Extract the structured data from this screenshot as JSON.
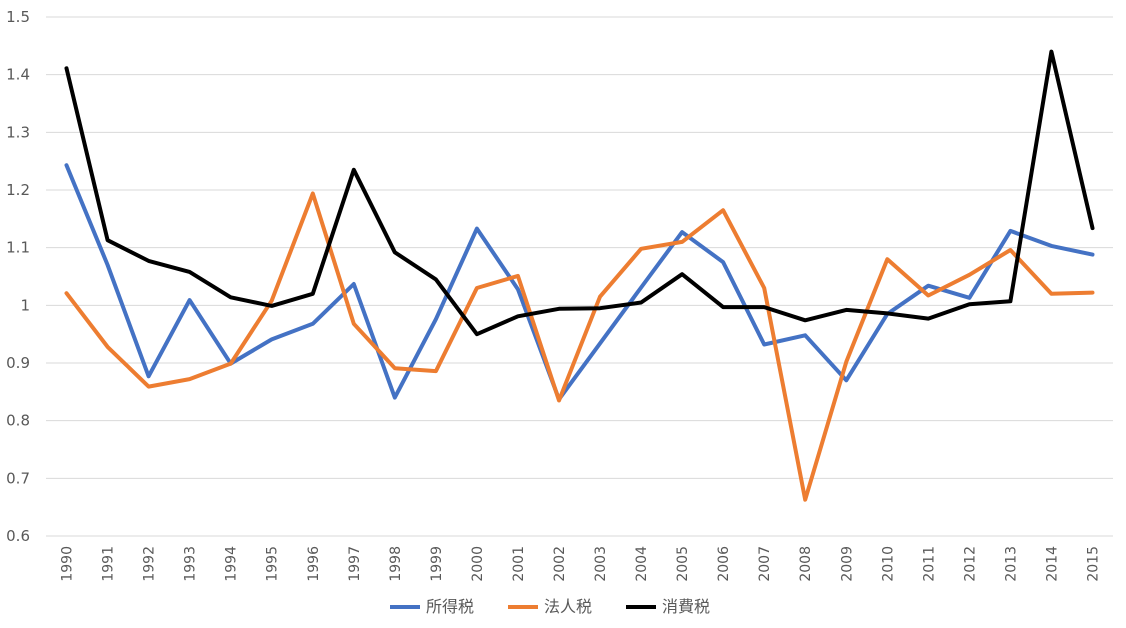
{
  "chart_data": {
    "type": "line",
    "title": "",
    "xlabel": "",
    "ylabel": "",
    "ylim": [
      0.6,
      1.5
    ],
    "yticks": [
      "0.6",
      "0.7",
      "0.8",
      "0.9",
      "1",
      "1.1",
      "1.2",
      "1.3",
      "1.4",
      "1.5"
    ],
    "grid": true,
    "legend_position": "bottom",
    "categories": [
      "1990",
      "1991",
      "1992",
      "1993",
      "1994",
      "1995",
      "1996",
      "1997",
      "1998",
      "1999",
      "2000",
      "2001",
      "2002",
      "2003",
      "2004",
      "2005",
      "2006",
      "2007",
      "2008",
      "2009",
      "2010",
      "2011",
      "2012",
      "2013",
      "2014",
      "2015"
    ],
    "series": [
      {
        "name": "所得税",
        "color": "#4472C4",
        "values": [
          1.243,
          1.07,
          0.877,
          1.009,
          0.899,
          0.941,
          0.968,
          1.037,
          0.84,
          0.976,
          1.133,
          1.028,
          0.837,
          0.934,
          1.031,
          1.127,
          1.075,
          0.932,
          0.948,
          0.87,
          0.985,
          1.034,
          1.013,
          1.129,
          1.103,
          1.088
        ]
      },
      {
        "name": "法人税",
        "color": "#ED7D31",
        "values": [
          1.021,
          0.928,
          0.859,
          0.872,
          0.899,
          1.008,
          1.194,
          0.968,
          0.891,
          0.886,
          1.03,
          1.051,
          0.835,
          1.015,
          1.098,
          1.11,
          1.165,
          1.03,
          0.663,
          0.902,
          1.08,
          1.017,
          1.053,
          1.096,
          1.02,
          1.022
        ]
      },
      {
        "name": "消費税",
        "color": "#000000",
        "values": [
          1.411,
          1.113,
          1.077,
          1.058,
          1.014,
          0.999,
          1.02,
          1.235,
          1.092,
          1.045,
          0.95,
          0.981,
          0.994,
          0.995,
          1.005,
          1.054,
          0.997,
          0.997,
          0.974,
          0.992,
          0.986,
          0.977,
          1.002,
          1.007,
          1.44,
          1.134
        ]
      }
    ]
  }
}
